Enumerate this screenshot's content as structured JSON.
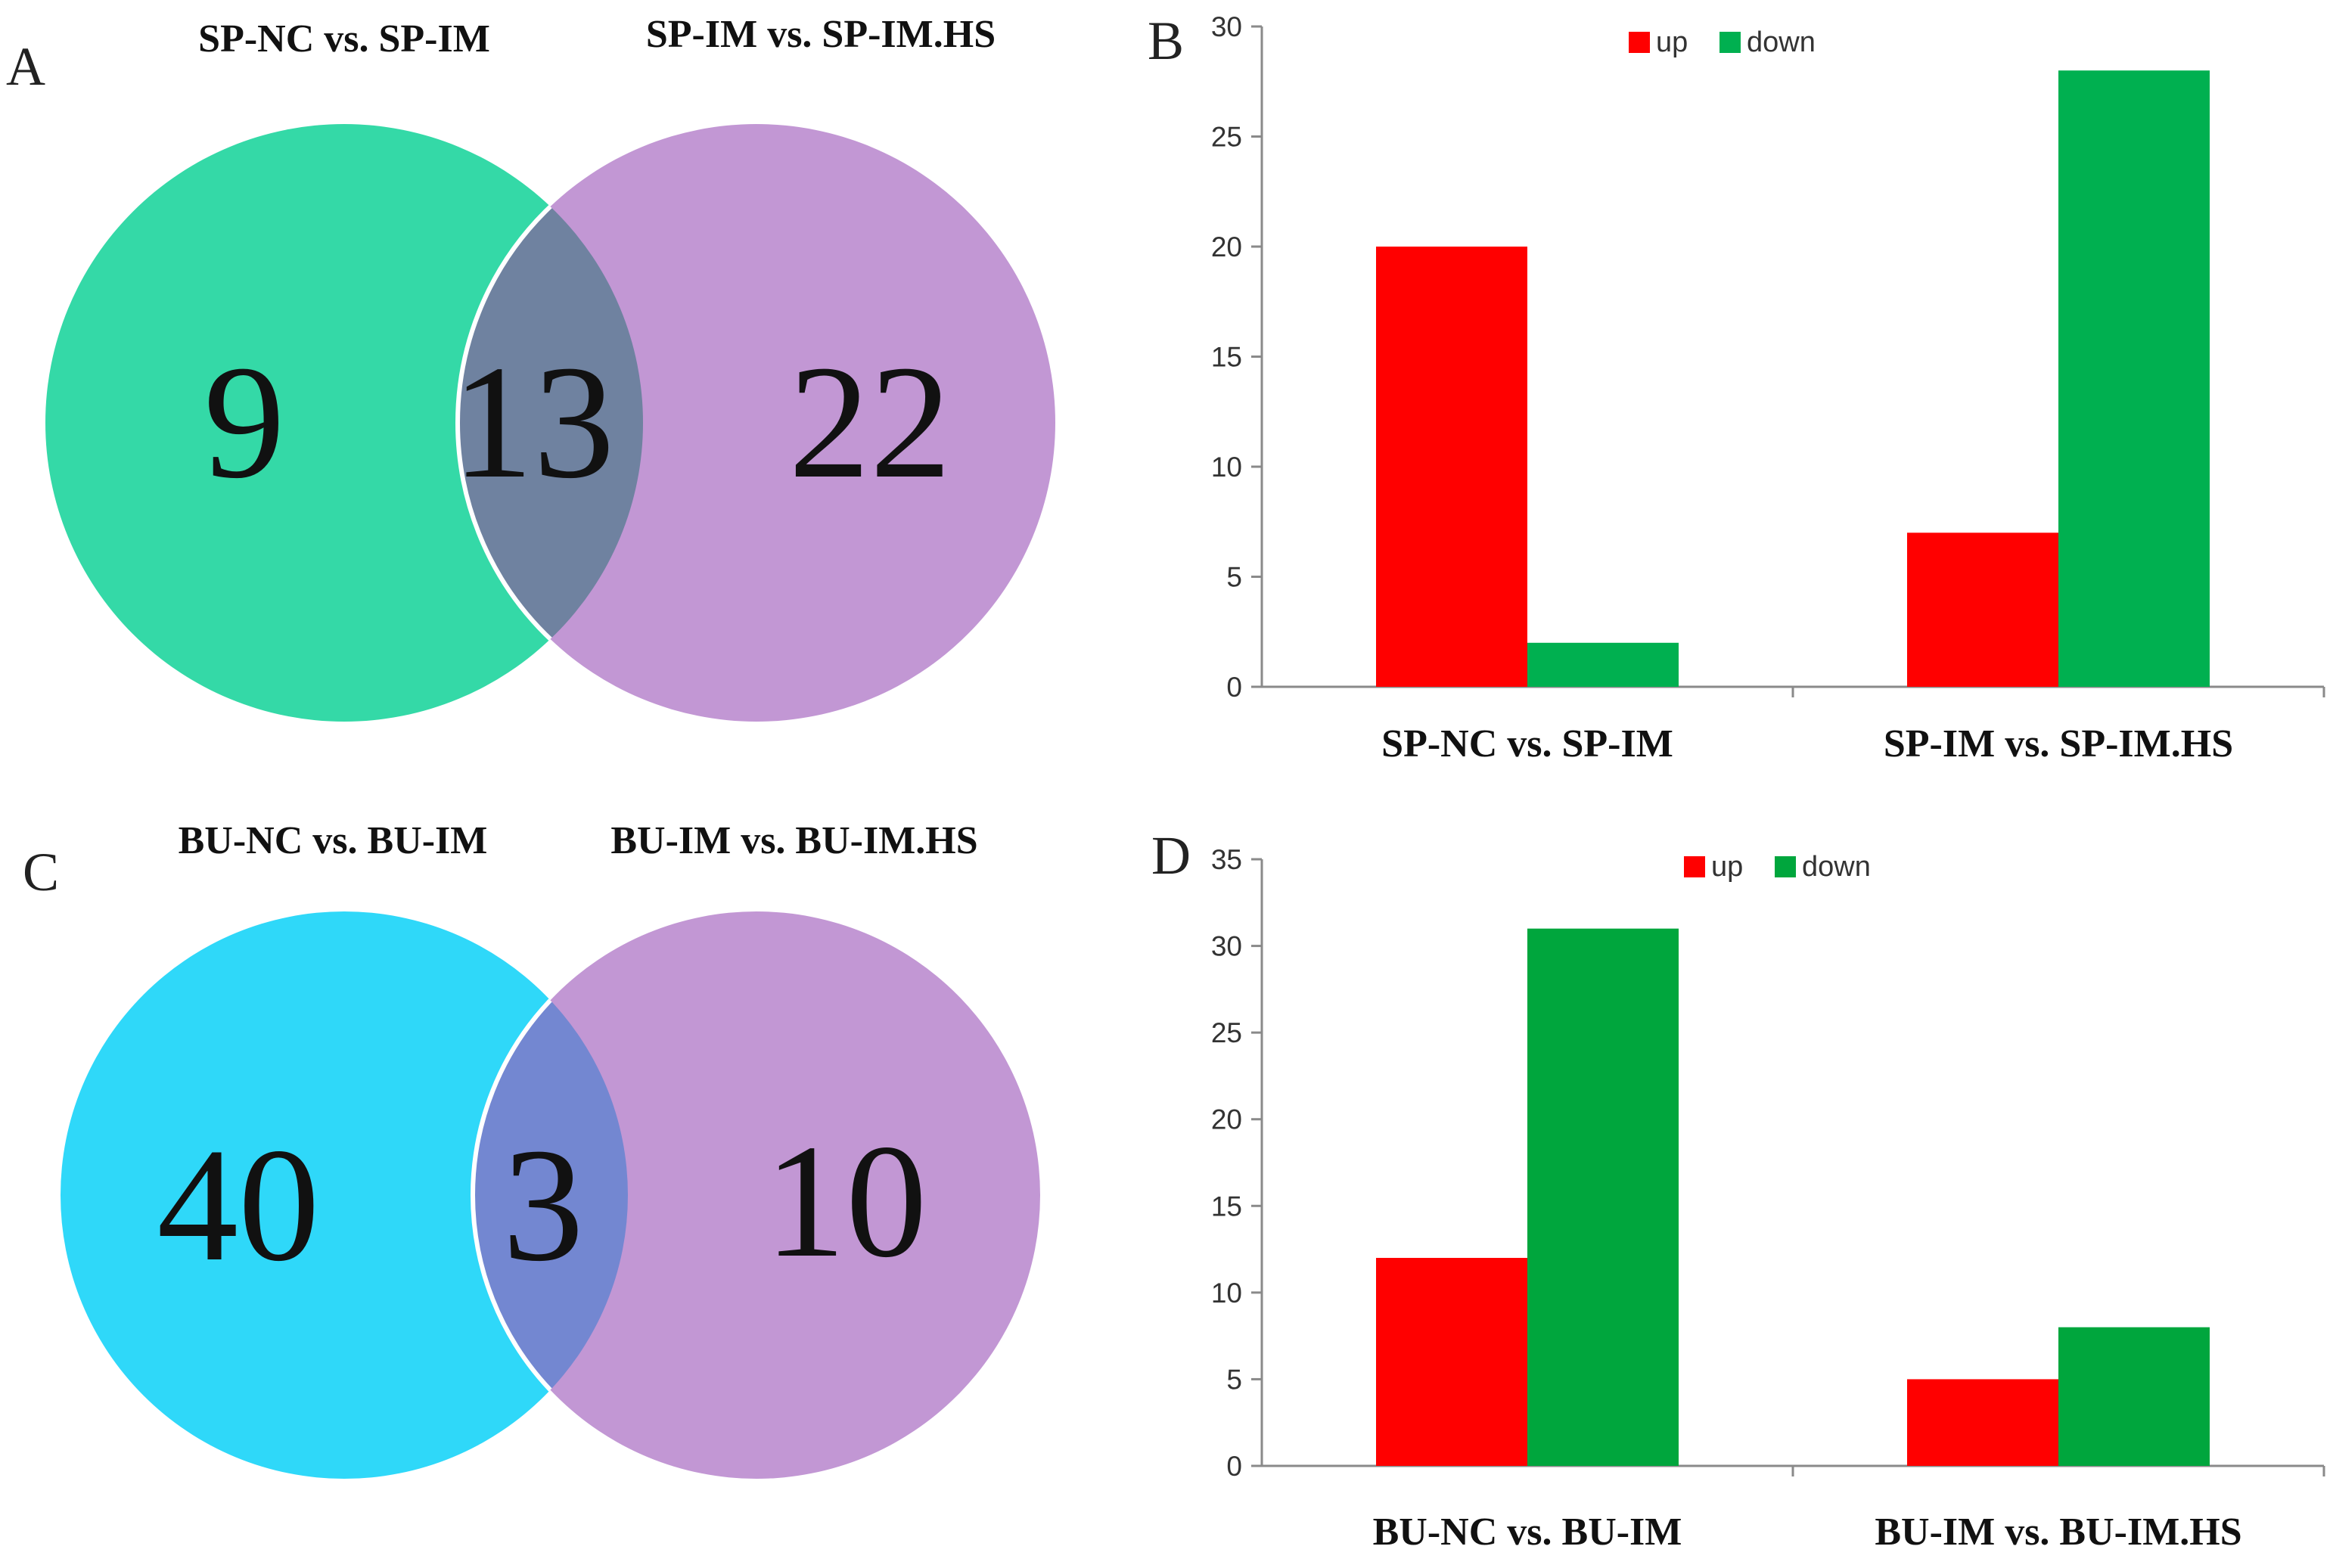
{
  "colors": {
    "up": "#ff0000",
    "down": "#00b050",
    "down_alt": "#00a63d",
    "venn_sp_left": "#34d9a7",
    "venn_bu_left": "#2fd8f9",
    "venn_right": "#c297d4",
    "venn_sp_overlap": "#6f82a0",
    "venn_bu_overlap": "#7387d1"
  },
  "venn_panels": [
    {
      "letter": "A",
      "left_title": "SP-NC vs. SP-IM",
      "right_title": "SP-IM vs. SP-IM.HS",
      "left_only": "9",
      "overlap": "13",
      "right_only": "22"
    },
    {
      "letter": "C",
      "left_title": "BU-NC vs. BU-IM",
      "right_title": "BU-IM vs. BU-IM.HS",
      "left_only": "40",
      "overlap": "3",
      "right_only": "10"
    }
  ],
  "chart_data": [
    {
      "panel": "B",
      "type": "bar",
      "title": "",
      "xlabel": "",
      "ylabel": "",
      "categories": [
        "SP-NC vs. SP-IM",
        "SP-IM vs. SP-IM.HS"
      ],
      "series": [
        {
          "name": "up",
          "values": [
            20,
            7
          ]
        },
        {
          "name": "down",
          "values": [
            2,
            28
          ]
        }
      ],
      "ylim": [
        0,
        30
      ],
      "yticks": [
        0,
        5,
        10,
        15,
        20,
        25,
        30
      ],
      "legend": "top-center",
      "grid": false
    },
    {
      "panel": "D",
      "type": "bar",
      "title": "",
      "xlabel": "",
      "ylabel": "",
      "categories": [
        "BU-NC vs. BU-IM",
        "BU-IM vs. BU-IM.HS"
      ],
      "series": [
        {
          "name": "up",
          "values": [
            12,
            5
          ]
        },
        {
          "name": "down",
          "values": [
            31,
            8
          ]
        }
      ],
      "ylim": [
        0,
        35
      ],
      "yticks": [
        0,
        5,
        10,
        15,
        20,
        25,
        30,
        35
      ],
      "legend": "top-center",
      "grid": false
    }
  ]
}
